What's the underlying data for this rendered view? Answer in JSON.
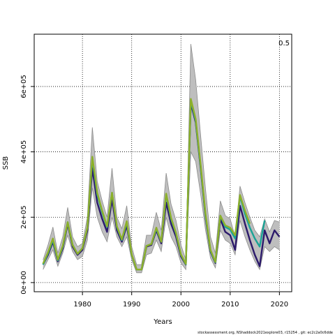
{
  "chart_data": {
    "type": "line",
    "xlabel": "Years",
    "ylabel": "SSB",
    "xlim": [
      1970.2,
      2022.5
    ],
    "ylim": [
      -28000,
      760000
    ],
    "x_ticks": [
      1980,
      1990,
      2000,
      2010,
      2020
    ],
    "y_ticks": [
      0,
      200000,
      400000,
      600000
    ],
    "y_tick_labels": [
      "0e+00",
      "2e+05",
      "4e+05",
      "6e+05"
    ],
    "grid": "dotted at ticks",
    "corner_label": "0.5",
    "colors": {
      "band": "#bebebe",
      "band_edge": "#8c8c8c",
      "series": [
        "#2c1a6b",
        "#1aa396",
        "#8db02a"
      ]
    },
    "band": {
      "x": [
        1972,
        1973,
        1974,
        1975,
        1976,
        1977,
        1978,
        1979,
        1980,
        1981,
        1982,
        1983,
        1984,
        1985,
        1986,
        1987,
        1988,
        1989,
        1990,
        1991,
        1992,
        1993,
        1994,
        1995,
        1996,
        1997,
        1998,
        1999,
        2000,
        2001,
        2002,
        2003,
        2004,
        2005,
        2006,
        2007,
        2008,
        2009,
        2010,
        2011,
        2012,
        2013,
        2014,
        2015,
        2016,
        2017,
        2018,
        2019,
        2020
      ],
      "lower": [
        40000,
        70000,
        100000,
        50000,
        90000,
        145000,
        95000,
        70000,
        80000,
        130000,
        290000,
        200000,
        155000,
        125000,
        200000,
        140000,
        110000,
        140000,
        70000,
        30000,
        30000,
        85000,
        90000,
        130000,
        95000,
        200000,
        140000,
        110000,
        60000,
        40000,
        400000,
        370000,
        270000,
        160000,
        75000,
        45000,
        160000,
        130000,
        120000,
        85000,
        190000,
        140000,
        100000,
        65000,
        40000,
        110000,
        95000,
        110000,
        100000
      ],
      "upper": [
        70000,
        115000,
        170000,
        90000,
        140000,
        230000,
        140000,
        110000,
        120000,
        200000,
        475000,
        310000,
        250000,
        200000,
        350000,
        200000,
        165000,
        235000,
        110000,
        55000,
        55000,
        145000,
        145000,
        215000,
        160000,
        335000,
        240000,
        190000,
        115000,
        70000,
        730000,
        620000,
        450000,
        285000,
        140000,
        90000,
        250000,
        205000,
        195000,
        140000,
        295000,
        245000,
        200000,
        160000,
        140000,
        195000,
        155000,
        190000,
        185000
      ]
    },
    "series": [
      {
        "values": [
          55000,
          85000,
          125000,
          65000,
          105000,
          180000,
          110000,
          85000,
          100000,
          160000,
          350000,
          245000,
          195000,
          155000,
          255000,
          160000,
          125000,
          175000,
          85000,
          40000,
          40000,
          110000,
          115000,
          160000,
          120000,
          245000,
          180000,
          140000,
          80000,
          55000,
          550000,
          490000,
          350000,
          200000,
          95000,
          60000,
          195000,
          155000,
          145000,
          100000,
          235000,
          180000,
          130000,
          85000,
          50000,
          160000,
          120000,
          160000,
          140000
        ]
      },
      {
        "values": [
          55000,
          90000,
          130000,
          68000,
          110000,
          185000,
          115000,
          88000,
          105000,
          168000,
          380000,
          270000,
          215000,
          170000,
          275000,
          170000,
          130000,
          185000,
          85000,
          40000,
          40000,
          112000,
          118000,
          165000,
          125000,
          270000,
          195000,
          150000,
          85000,
          56000,
          558000,
          495000,
          355000,
          205000,
          98000,
          62000,
          205000,
          170000,
          162000,
          135000,
          265000,
          210000,
          168000,
          135000,
          110000,
          190000
        ]
      },
      {
        "values": [
          58000,
          92000,
          135000,
          70000,
          112000,
          185000,
          115000,
          88000,
          105000,
          168000,
          385000,
          275000,
          220000,
          172000,
          275000,
          172000,
          132000,
          188000,
          86000,
          40000,
          40000,
          112000,
          118000,
          168000,
          125000,
          272000,
          198000,
          152000,
          86000,
          57000,
          562000,
          500000,
          360000,
          210000,
          100000,
          63000,
          205000,
          175000,
          168000,
          145000,
          268000,
          220000,
          180000
        ]
      }
    ]
  },
  "footer": "stockassessment.org, NShaddock2021explore03, r15254 , git: ec2c2a0c6dde"
}
